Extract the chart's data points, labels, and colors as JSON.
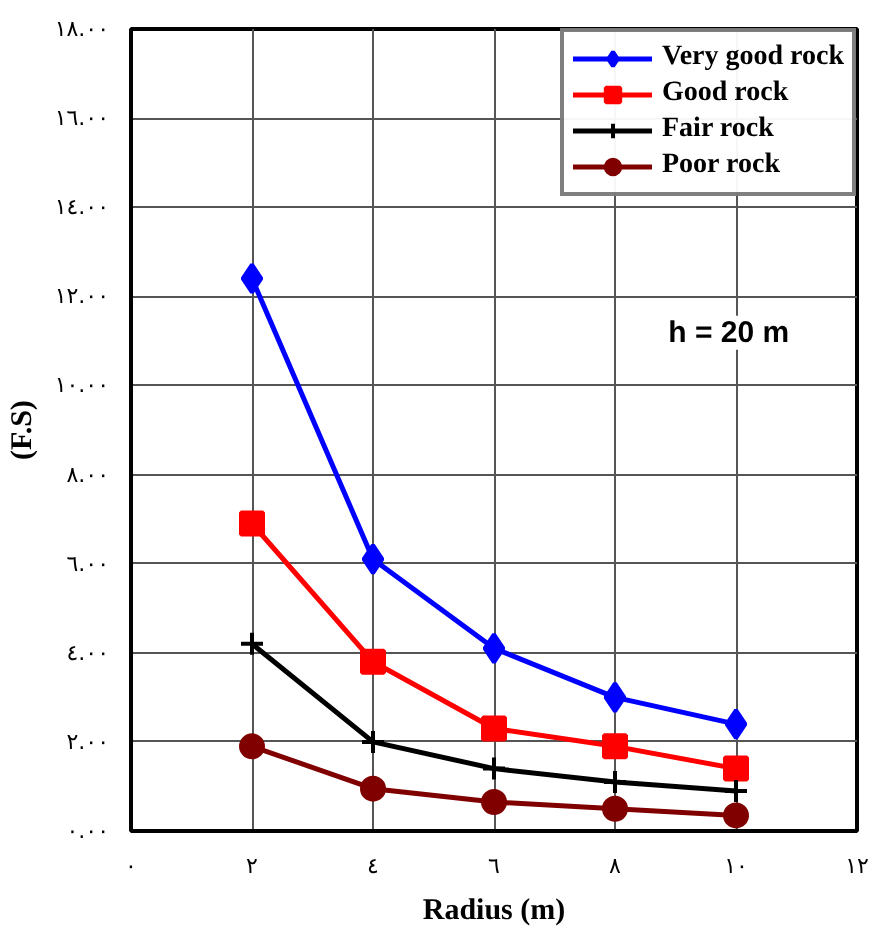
{
  "chart_data": {
    "type": "line",
    "xlabel": "Radius (m)",
    "ylabel": "(F.S)",
    "annotations": [
      "h = 20 m"
    ],
    "x": [
      2,
      4,
      6,
      8,
      10
    ],
    "series": [
      {
        "name": "Very good rock",
        "color": "#0000ff",
        "marker": "diamond",
        "values": [
          12.4,
          6.1,
          4.1,
          3.0,
          2.4
        ]
      },
      {
        "name": "Good rock",
        "color": "#ff0000",
        "marker": "square",
        "values": [
          6.9,
          3.8,
          2.3,
          1.9,
          1.4
        ]
      },
      {
        "name": "Fair rock",
        "color": "#000000",
        "marker": "cross",
        "values": [
          4.2,
          2.0,
          1.4,
          1.1,
          0.9
        ]
      },
      {
        "name": "Poor rock",
        "color": "#800000",
        "marker": "circle",
        "values": [
          1.9,
          0.95,
          0.65,
          0.5,
          0.35
        ]
      }
    ],
    "xlim": [
      0,
      12
    ],
    "ylim": [
      0,
      18
    ],
    "xticks": [
      {
        "value": 0,
        "label": "٠"
      },
      {
        "value": 2,
        "label": "٢"
      },
      {
        "value": 4,
        "label": "٤"
      },
      {
        "value": 6,
        "label": "٦"
      },
      {
        "value": 8,
        "label": "٨"
      },
      {
        "value": 10,
        "label": "١٠"
      },
      {
        "value": 12,
        "label": "١٢"
      }
    ],
    "yticks": [
      {
        "value": 0,
        "label": "٠.٠٠"
      },
      {
        "value": 2,
        "label": "٢.٠٠"
      },
      {
        "value": 4,
        "label": "٤.٠٠"
      },
      {
        "value": 6,
        "label": "٦.٠٠"
      },
      {
        "value": 8,
        "label": "٨.٠٠"
      },
      {
        "value": 10,
        "label": "١٠.٠٠"
      },
      {
        "value": 12,
        "label": "١٢.٠٠"
      },
      {
        "value": 14,
        "label": "١٤.٠٠"
      },
      {
        "value": 16,
        "label": "١٦.٠٠"
      },
      {
        "value": 18,
        "label": "١٨.٠٠"
      }
    ],
    "grid": true,
    "legend": "top right",
    "line_style": "solid"
  }
}
